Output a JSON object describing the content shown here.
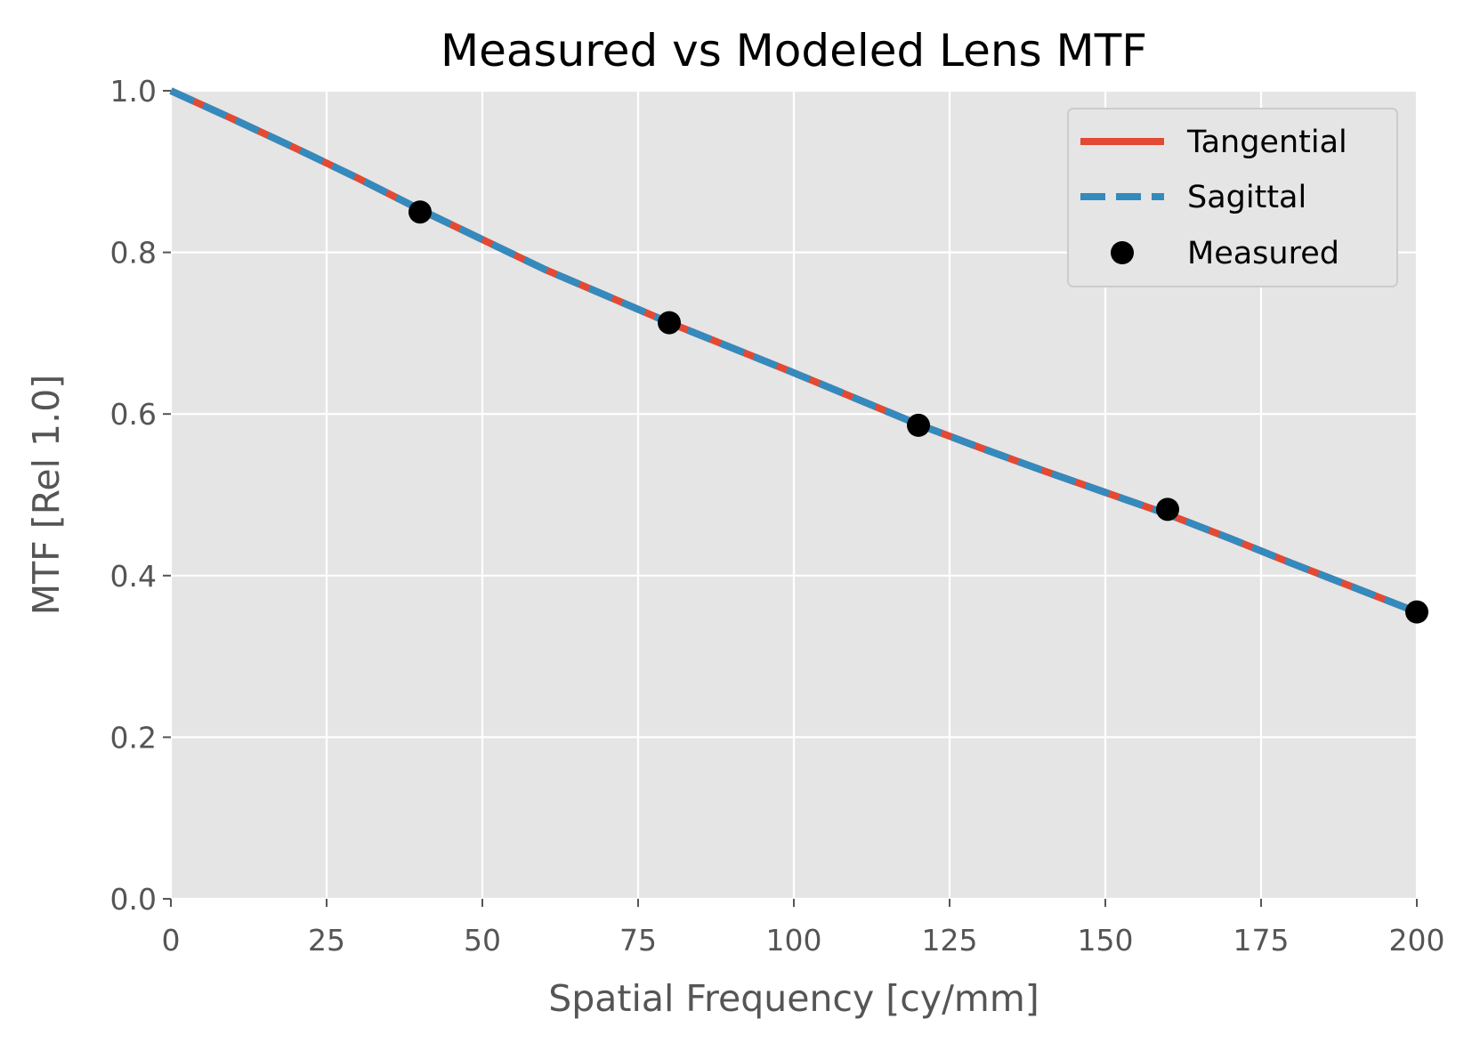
{
  "chart_data": {
    "type": "line",
    "title": "Measured vs Modeled Lens MTF",
    "xlabel": "Spatial Frequency [cy/mm]",
    "ylabel": "MTF [Rel 1.0]",
    "xlim": [
      0,
      200
    ],
    "ylim": [
      0,
      1.0
    ],
    "xticks": [
      "0",
      "25",
      "50",
      "75",
      "100",
      "125",
      "150",
      "175",
      "200"
    ],
    "yticks": [
      "0.0",
      "0.2",
      "0.4",
      "0.6",
      "0.8",
      "1.0"
    ],
    "grid": true,
    "legend_position": "top-right",
    "series": [
      {
        "name": "Tangential",
        "style": "solid",
        "color": "#E24A33",
        "x": [
          0,
          10,
          20,
          30,
          40,
          50,
          60,
          70,
          80,
          90,
          100,
          110,
          120,
          130,
          140,
          150,
          160,
          170,
          180,
          190,
          200
        ],
        "y": [
          1.0,
          0.965,
          0.929,
          0.892,
          0.853,
          0.816,
          0.779,
          0.746,
          0.713,
          0.682,
          0.651,
          0.619,
          0.587,
          0.558,
          0.53,
          0.503,
          0.476,
          0.446,
          0.415,
          0.385,
          0.355
        ]
      },
      {
        "name": "Sagittal",
        "style": "dashed",
        "color": "#348ABD",
        "x": [
          0,
          10,
          20,
          30,
          40,
          50,
          60,
          70,
          80,
          90,
          100,
          110,
          120,
          130,
          140,
          150,
          160,
          170,
          180,
          190,
          200
        ],
        "y": [
          1.0,
          0.965,
          0.929,
          0.892,
          0.853,
          0.816,
          0.779,
          0.746,
          0.713,
          0.682,
          0.651,
          0.619,
          0.587,
          0.558,
          0.53,
          0.503,
          0.476,
          0.446,
          0.415,
          0.385,
          0.355
        ]
      },
      {
        "name": "Measured",
        "style": "markers",
        "color": "#000000",
        "x": [
          40,
          80,
          120,
          160,
          200
        ],
        "y": [
          0.85,
          0.713,
          0.586,
          0.482,
          0.355
        ]
      }
    ],
    "colors": {
      "plot_background": "#E5E5E5",
      "grid": "#FFFFFF",
      "legend_background": "#E5E5E5",
      "legend_border": "#CCCCCC",
      "tick": "#555555"
    }
  }
}
